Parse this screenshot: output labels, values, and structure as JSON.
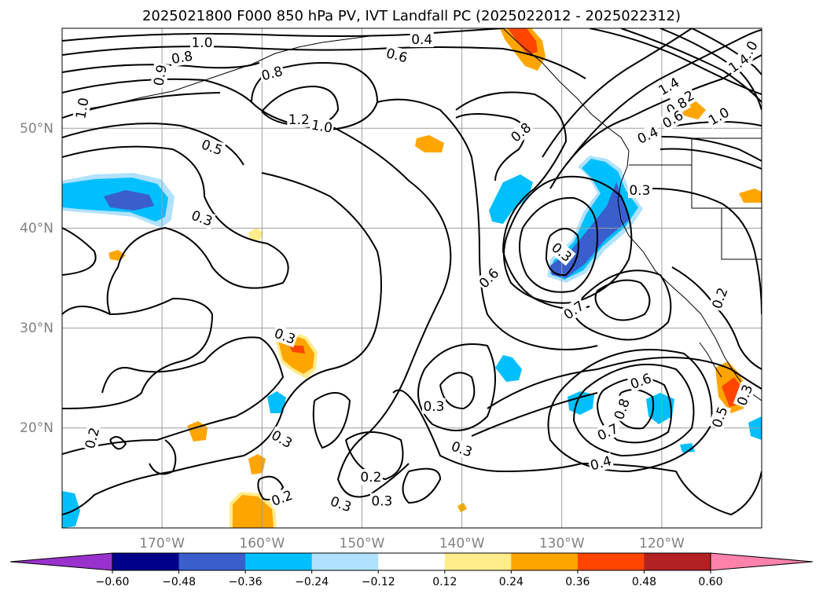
{
  "title": "2025021800 F000 850 hPa PV, IVT Landfall PC (2025022012 - 2025022312)",
  "map": {
    "projection": "PlateCarree",
    "lon_range": [
      -180,
      -110
    ],
    "lat_range": [
      10,
      60
    ],
    "lat_ticks": [
      "50°N",
      "40°N",
      "30°N",
      "20°N"
    ],
    "lon_ticks": [
      "170°W",
      "160°W",
      "150°W",
      "140°W",
      "130°W",
      "120°W"
    ],
    "grid": true
  },
  "contour_labels": [
    {
      "text": "1.0",
      "lon": -166,
      "lat": 58.6,
      "rot": 0
    },
    {
      "text": "0.8",
      "lon": -168,
      "lat": 57.1,
      "rot": -10
    },
    {
      "text": "0.9",
      "lon": -170.2,
      "lat": 55.3,
      "rot": -80
    },
    {
      "text": "0.8",
      "lon": -159,
      "lat": 55.5,
      "rot": -15
    },
    {
      "text": "1.0",
      "lon": -178,
      "lat": 52.0,
      "rot": -80
    },
    {
      "text": "0.4",
      "lon": -144,
      "lat": 58.9,
      "rot": 0
    },
    {
      "text": "0.6",
      "lon": -146.5,
      "lat": 57.3,
      "rot": 15
    },
    {
      "text": "1.2",
      "lon": -156.3,
      "lat": 50.9,
      "rot": 0
    },
    {
      "text": "1.0",
      "lon": -154.0,
      "lat": 50.2,
      "rot": 10
    },
    {
      "text": "0.5",
      "lon": -165.0,
      "lat": 48.1,
      "rot": 20
    },
    {
      "text": "0.8",
      "lon": -134.1,
      "lat": 49.6,
      "rot": -40
    },
    {
      "text": "1.0",
      "lon": -111.3,
      "lat": 57.7,
      "rot": -60
    },
    {
      "text": "1.4",
      "lon": -112.3,
      "lat": 56.5,
      "rot": -35
    },
    {
      "text": "1.4",
      "lon": -119.3,
      "lat": 54.2,
      "rot": -30
    },
    {
      "text": "1.2",
      "lon": -117.8,
      "lat": 52.9,
      "rot": -30
    },
    {
      "text": "1.0",
      "lon": -114.3,
      "lat": 51.2,
      "rot": -30
    },
    {
      "text": "0.8",
      "lon": -118.5,
      "lat": 52.2,
      "rot": -30
    },
    {
      "text": "0.6",
      "lon": -118.9,
      "lat": 50.9,
      "rot": -30
    },
    {
      "text": "0.4",
      "lon": -121.4,
      "lat": 49.3,
      "rot": -25
    },
    {
      "text": "0.3",
      "lon": -122.2,
      "lat": 43.8,
      "rot": 0
    },
    {
      "text": "0.3",
      "lon": -166.0,
      "lat": 41.0,
      "rot": 20
    },
    {
      "text": "0.3",
      "lon": -130.0,
      "lat": 37.6,
      "rot": 40
    },
    {
      "text": "0.6",
      "lon": -137.3,
      "lat": 35.0,
      "rot": -45
    },
    {
      "text": "0.7",
      "lon": -128.8,
      "lat": 31.8,
      "rot": -35
    },
    {
      "text": "0.2",
      "lon": -114.2,
      "lat": 33.0,
      "rot": -70
    },
    {
      "text": "0.3",
      "lon": -157.7,
      "lat": 29.2,
      "rot": 20
    },
    {
      "text": "0.3",
      "lon": -142.8,
      "lat": 22.2,
      "rot": 0
    },
    {
      "text": "0.6",
      "lon": -122.1,
      "lat": 24.7,
      "rot": -20
    },
    {
      "text": "0.5",
      "lon": -114.2,
      "lat": 21.1,
      "rot": -70
    },
    {
      "text": "0.3",
      "lon": -111.7,
      "lat": 23.3,
      "rot": -70
    },
    {
      "text": "0.8",
      "lon": -124.0,
      "lat": 21.9,
      "rot": -70
    },
    {
      "text": "0.7",
      "lon": -125.4,
      "lat": 19.6,
      "rot": -25
    },
    {
      "text": "0.4",
      "lon": -126.1,
      "lat": 16.5,
      "rot": -15
    },
    {
      "text": "0.3",
      "lon": -158.0,
      "lat": 18.9,
      "rot": 30
    },
    {
      "text": "0.3",
      "lon": -140.0,
      "lat": 17.9,
      "rot": 20
    },
    {
      "text": "0.2",
      "lon": -177.0,
      "lat": 19.0,
      "rot": -75
    },
    {
      "text": "0.2",
      "lon": -149.1,
      "lat": 15.1,
      "rot": 0
    },
    {
      "text": "0.2",
      "lon": -158.0,
      "lat": 13.0,
      "rot": -20
    },
    {
      "text": "0.3",
      "lon": -152.1,
      "lat": 12.4,
      "rot": 20
    },
    {
      "text": "0.3",
      "lon": -148.0,
      "lat": 12.7,
      "rot": 0
    }
  ],
  "colorbar": {
    "ticks": [
      "−0.60",
      "−0.48",
      "−0.36",
      "−0.24",
      "−0.12",
      "0.12",
      "0.24",
      "0.36",
      "0.48",
      "0.60"
    ],
    "colors": [
      "#9932cc",
      "#00008b",
      "#3a5fcd",
      "#00bfff",
      "#b0e2ff",
      "#ffffff",
      "#ffec8b",
      "#ffa500",
      "#ff4500",
      "#b22222",
      "#ff82ab"
    ],
    "extend": "both"
  }
}
